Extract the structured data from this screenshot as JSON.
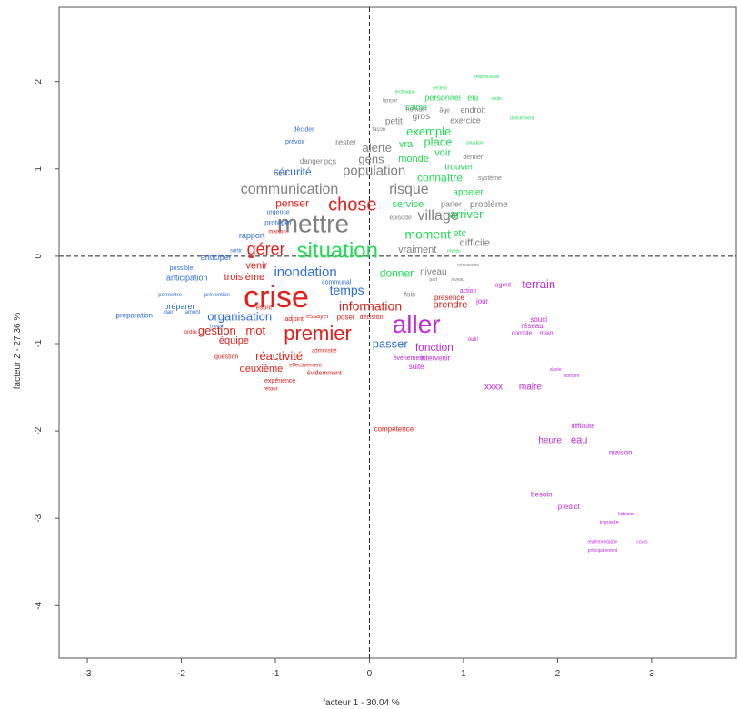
{
  "chart_data": {
    "type": "scatter",
    "subtype": "word-cloud-factor-map",
    "title": "",
    "xlabel": "facteur 1 - 30.04 %",
    "ylabel": "facteur 2 - 27.36 %",
    "xlim": [
      -3.3,
      3.9
    ],
    "ylim": [
      -4.6,
      2.85
    ],
    "xticks": [
      -3,
      -2,
      -1,
      0,
      1,
      2,
      3
    ],
    "yticks": [
      -4,
      -3,
      -2,
      -1,
      0,
      1,
      2
    ],
    "grid": false,
    "reference_lines": [
      0,
      0
    ],
    "classes": [
      {
        "name": "class-1",
        "color": "#E0201B"
      },
      {
        "name": "class-2",
        "color": "#2E6FD6"
      },
      {
        "name": "class-3",
        "color": "#808080"
      },
      {
        "name": "class-4",
        "color": "#22DD55"
      },
      {
        "name": "class-5",
        "color": "#C02BDE"
      }
    ],
    "words": [
      {
        "text": "crise",
        "x": -0.99,
        "y": -0.49,
        "size": 34,
        "cls": 0
      },
      {
        "text": "mettre",
        "x": -0.6,
        "y": 0.35,
        "size": 28,
        "cls": 2
      },
      {
        "text": "situation",
        "x": -0.34,
        "y": 0.05,
        "size": 24,
        "cls": 3
      },
      {
        "text": "aller",
        "x": 0.5,
        "y": -0.8,
        "size": 28,
        "cls": 4
      },
      {
        "text": "premier",
        "x": -0.55,
        "y": -0.9,
        "size": 22,
        "cls": 0
      },
      {
        "text": "chose",
        "x": -0.18,
        "y": 0.58,
        "size": 20,
        "cls": 0
      },
      {
        "text": "gérer",
        "x": -1.1,
        "y": 0.07,
        "size": 18,
        "cls": 0
      },
      {
        "text": "communication",
        "x": -0.85,
        "y": 0.76,
        "size": 16,
        "cls": 2
      },
      {
        "text": "risque",
        "x": 0.42,
        "y": 0.76,
        "size": 16,
        "cls": 2
      },
      {
        "text": "village",
        "x": 0.73,
        "y": 0.46,
        "size": 16,
        "cls": 2
      },
      {
        "text": "inondation",
        "x": -0.68,
        "y": -0.19,
        "size": 15,
        "cls": 1
      },
      {
        "text": "population",
        "x": 0.05,
        "y": 0.97,
        "size": 15,
        "cls": 2
      },
      {
        "text": "moment",
        "x": 0.62,
        "y": 0.24,
        "size": 14,
        "cls": 3
      },
      {
        "text": "information",
        "x": 0.01,
        "y": -0.58,
        "size": 14,
        "cls": 0
      },
      {
        "text": "temps",
        "x": -0.24,
        "y": -0.4,
        "size": 14,
        "cls": 1
      },
      {
        "text": "organisation",
        "x": -1.38,
        "y": -0.7,
        "size": 13,
        "cls": 1
      },
      {
        "text": "gestion",
        "x": -1.62,
        "y": -0.86,
        "size": 13,
        "cls": 0
      },
      {
        "text": "mot",
        "x": -1.21,
        "y": -0.86,
        "size": 13,
        "cls": 0
      },
      {
        "text": "passer",
        "x": 0.22,
        "y": -1.01,
        "size": 13,
        "cls": 1
      },
      {
        "text": "réactivité",
        "x": -0.96,
        "y": -1.15,
        "size": 13,
        "cls": 0
      },
      {
        "text": "fonction",
        "x": 0.69,
        "y": -1.05,
        "size": 12,
        "cls": 4
      },
      {
        "text": "terrain",
        "x": 1.8,
        "y": -0.33,
        "size": 13,
        "cls": 4
      },
      {
        "text": "arriver",
        "x": 1.03,
        "y": 0.47,
        "size": 13,
        "cls": 3
      },
      {
        "text": "exemple",
        "x": 0.63,
        "y": 1.42,
        "size": 13,
        "cls": 3
      },
      {
        "text": "place",
        "x": 0.73,
        "y": 1.3,
        "size": 13,
        "cls": 3
      },
      {
        "text": "alerte",
        "x": 0.08,
        "y": 1.23,
        "size": 13,
        "cls": 2
      },
      {
        "text": "gens",
        "x": 0.02,
        "y": 1.1,
        "size": 13,
        "cls": 2
      },
      {
        "text": "connaître",
        "x": 0.75,
        "y": 0.89,
        "size": 12,
        "cls": 3
      },
      {
        "text": "donner",
        "x": 0.29,
        "y": -0.2,
        "size": 12,
        "cls": 3
      },
      {
        "text": "prendre",
        "x": 0.86,
        "y": -0.56,
        "size": 11,
        "cls": 0
      },
      {
        "text": "penser",
        "x": -0.82,
        "y": 0.6,
        "size": 12,
        "cls": 0
      },
      {
        "text": "venir",
        "x": -1.2,
        "y": -0.11,
        "size": 11,
        "cls": 0
      },
      {
        "text": "troisième",
        "x": -1.33,
        "y": -0.24,
        "size": 11,
        "cls": 0
      },
      {
        "text": "équipe",
        "x": -1.44,
        "y": -0.97,
        "size": 11,
        "cls": 0
      },
      {
        "text": "deuxième",
        "x": -1.15,
        "y": -1.29,
        "size": 11,
        "cls": 0
      },
      {
        "text": "sécurité",
        "x": -0.82,
        "y": 0.96,
        "size": 12,
        "cls": 1
      },
      {
        "text": "vraiment",
        "x": 0.51,
        "y": 0.07,
        "size": 11,
        "cls": 2
      },
      {
        "text": "difficile",
        "x": 1.12,
        "y": 0.15,
        "size": 11,
        "cls": 2
      },
      {
        "text": "niveau",
        "x": 0.68,
        "y": -0.18,
        "size": 10,
        "cls": 2
      },
      {
        "text": "service",
        "x": 0.41,
        "y": 0.59,
        "size": 11,
        "cls": 3
      },
      {
        "text": "etc",
        "x": 0.96,
        "y": 0.26,
        "size": 11,
        "cls": 3
      },
      {
        "text": "voir",
        "x": 0.78,
        "y": 1.18,
        "size": 11,
        "cls": 3
      },
      {
        "text": "monde",
        "x": 0.47,
        "y": 1.11,
        "size": 11,
        "cls": 3
      },
      {
        "text": "vrai",
        "x": 0.4,
        "y": 1.28,
        "size": 11,
        "cls": 3
      },
      {
        "text": "trouver",
        "x": 0.95,
        "y": 1.02,
        "size": 10,
        "cls": 3
      },
      {
        "text": "appeler",
        "x": 1.05,
        "y": 0.73,
        "size": 10,
        "cls": 3
      },
      {
        "text": "problème",
        "x": 1.27,
        "y": 0.59,
        "size": 10,
        "cls": 2
      },
      {
        "text": "parler",
        "x": 0.87,
        "y": 0.59,
        "size": 9,
        "cls": 2
      },
      {
        "text": "gros",
        "x": 0.55,
        "y": 1.6,
        "size": 10,
        "cls": 2
      },
      {
        "text": "petit",
        "x": 0.26,
        "y": 1.54,
        "size": 10,
        "cls": 2
      },
      {
        "text": "exercice",
        "x": 1.02,
        "y": 1.55,
        "size": 9,
        "cls": 2
      },
      {
        "text": "endroit",
        "x": 1.1,
        "y": 1.67,
        "size": 9,
        "cls": 2
      },
      {
        "text": "calme",
        "x": 0.5,
        "y": 1.7,
        "size": 9,
        "cls": 3
      },
      {
        "text": "personnel",
        "x": 0.78,
        "y": 1.81,
        "size": 9,
        "cls": 3
      },
      {
        "text": "élu",
        "x": 1.1,
        "y": 1.81,
        "size": 9,
        "cls": 3
      },
      {
        "text": "xxxx",
        "x": 1.32,
        "y": -1.5,
        "size": 10,
        "cls": 4
      },
      {
        "text": "maire",
        "x": 1.71,
        "y": -1.5,
        "size": 10,
        "cls": 4
      },
      {
        "text": "heure",
        "x": 1.92,
        "y": -2.11,
        "size": 10,
        "cls": 4
      },
      {
        "text": "eau",
        "x": 2.23,
        "y": -2.11,
        "size": 11,
        "cls": 4
      },
      {
        "text": "compétence",
        "x": 0.26,
        "y": -1.98,
        "size": 8,
        "cls": 0
      },
      {
        "text": "anticiper",
        "x": -1.63,
        "y": -0.02,
        "size": 9,
        "cls": 1
      },
      {
        "text": "anticipation",
        "x": -1.94,
        "y": -0.25,
        "size": 9,
        "cls": 1
      },
      {
        "text": "préparer",
        "x": -2.02,
        "y": -0.58,
        "size": 9,
        "cls": 1
      },
      {
        "text": "préparation",
        "x": -2.5,
        "y": -0.68,
        "size": 8,
        "cls": 1
      },
      {
        "text": "rapport",
        "x": -1.25,
        "y": 0.23,
        "size": 9,
        "cls": 1
      },
      {
        "text": "protéger",
        "x": -0.97,
        "y": 0.38,
        "size": 8,
        "cls": 1
      },
      {
        "text": "urgence",
        "x": -0.97,
        "y": 0.5,
        "size": 7,
        "cls": 1
      },
      {
        "text": "prévoir",
        "x": -0.79,
        "y": 1.31,
        "size": 7,
        "cls": 1
      },
      {
        "text": "décider",
        "x": -0.7,
        "y": 1.45,
        "size": 7,
        "cls": 1
      },
      {
        "text": "rester",
        "x": -0.25,
        "y": 1.3,
        "size": 9,
        "cls": 2
      },
      {
        "text": "outil",
        "x": -0.94,
        "y": 0.94,
        "size": 8,
        "cls": 2
      },
      {
        "text": "pcs",
        "x": -0.42,
        "y": 1.08,
        "size": 9,
        "cls": 2
      },
      {
        "text": "danger",
        "x": -0.62,
        "y": 1.08,
        "size": 8,
        "cls": 2
      },
      {
        "text": "fois",
        "x": 0.43,
        "y": -0.44,
        "size": 8,
        "cls": 2
      },
      {
        "text": "épisode",
        "x": 0.33,
        "y": 0.44,
        "size": 7,
        "cls": 2
      },
      {
        "text": "système",
        "x": 1.28,
        "y": 0.89,
        "size": 7,
        "cls": 2
      },
      {
        "text": "dernier",
        "x": 1.1,
        "y": 1.13,
        "size": 7,
        "cls": 2
      },
      {
        "text": "humain",
        "x": 0.5,
        "y": 1.68,
        "size": 7,
        "cls": 2
      },
      {
        "text": "âge",
        "x": 0.8,
        "y": 1.67,
        "size": 7,
        "cls": 2
      },
      {
        "text": "souci",
        "x": 1.8,
        "y": -0.73,
        "size": 8,
        "cls": 4
      },
      {
        "text": "réseau",
        "x": 1.73,
        "y": -0.8,
        "size": 8,
        "cls": 4
      },
      {
        "text": "jour",
        "x": 1.2,
        "y": -0.52,
        "size": 8,
        "cls": 4
      },
      {
        "text": "action",
        "x": 1.05,
        "y": -0.4,
        "size": 7,
        "cls": 4
      },
      {
        "text": "agent",
        "x": 1.42,
        "y": -0.33,
        "size": 7,
        "cls": 4
      },
      {
        "text": "compte",
        "x": 1.62,
        "y": -0.88,
        "size": 7,
        "cls": 4
      },
      {
        "text": "main",
        "x": 1.88,
        "y": -0.88,
        "size": 7,
        "cls": 4
      },
      {
        "text": "besoin",
        "x": 1.83,
        "y": -2.73,
        "size": 8,
        "cls": 4
      },
      {
        "text": "predict",
        "x": 2.12,
        "y": -2.87,
        "size": 8,
        "cls": 4
      },
      {
        "text": "maison",
        "x": 2.67,
        "y": -2.25,
        "size": 8,
        "cls": 4
      },
      {
        "text": "difficulté",
        "x": 2.27,
        "y": -1.95,
        "size": 7,
        "cls": 4
      },
      {
        "text": "intervenir",
        "x": 0.7,
        "y": -1.17,
        "size": 8,
        "cls": 4
      },
      {
        "text": "événement",
        "x": 0.42,
        "y": -1.17,
        "size": 7,
        "cls": 4
      },
      {
        "text": "suite",
        "x": 0.5,
        "y": -1.27,
        "size": 8,
        "cls": 4
      },
      {
        "text": "présence",
        "x": 0.85,
        "y": -0.48,
        "size": 8,
        "cls": 0
      },
      {
        "text": "poser",
        "x": -0.25,
        "y": -0.7,
        "size": 8,
        "cls": 0
      },
      {
        "text": "décision",
        "x": 0.02,
        "y": -0.7,
        "size": 7,
        "cls": 0
      },
      {
        "text": "essayer",
        "x": -0.55,
        "y": -0.69,
        "size": 7,
        "cls": 0
      },
      {
        "text": "adjoint",
        "x": -0.8,
        "y": -0.72,
        "size": 7,
        "cls": 0
      },
      {
        "text": "esprit",
        "x": -1.12,
        "y": -0.59,
        "size": 7,
        "cls": 0
      },
      {
        "text": "question",
        "x": -1.52,
        "y": -1.15,
        "size": 7,
        "cls": 0
      },
      {
        "text": "évidemment",
        "x": -0.48,
        "y": -1.34,
        "size": 7,
        "cls": 0
      },
      {
        "text": "effectivement",
        "x": -0.68,
        "y": -1.25,
        "size": 6,
        "cls": 0
      },
      {
        "text": "expérience",
        "x": -0.95,
        "y": -1.43,
        "size": 7,
        "cls": 0
      },
      {
        "text": "retour",
        "x": -1.05,
        "y": -1.52,
        "size": 6,
        "cls": 0
      },
      {
        "text": "administré",
        "x": -0.48,
        "y": -1.08,
        "size": 6,
        "cls": 0
      },
      {
        "text": "prévention",
        "x": -1.62,
        "y": -0.44,
        "size": 6,
        "cls": 1
      },
      {
        "text": "permettre",
        "x": -2.12,
        "y": -0.44,
        "size": 6,
        "cls": 1
      },
      {
        "text": "amont",
        "x": -1.88,
        "y": -0.64,
        "size": 6,
        "cls": 1
      },
      {
        "text": "clair",
        "x": -2.14,
        "y": -0.64,
        "size": 6,
        "cls": 1
      },
      {
        "text": "possible",
        "x": -2.0,
        "y": -0.14,
        "size": 7,
        "cls": 1
      },
      {
        "text": "communal",
        "x": -0.35,
        "y": -0.3,
        "size": 7,
        "cls": 1
      },
      {
        "text": "sortir",
        "x": -1.42,
        "y": 0.06,
        "size": 6,
        "cls": 1
      },
      {
        "text": "maison",
        "x": -0.98,
        "y": 0.28,
        "size": 6,
        "cls": 0
      },
      {
        "text": "ordre",
        "x": -1.9,
        "y": -0.87,
        "size": 6,
        "cls": 0
      },
      {
        "text": "travail",
        "x": -1.62,
        "y": -0.8,
        "size": 6,
        "cls": 1
      },
      {
        "text": "outil",
        "x": 1.1,
        "y": -0.95,
        "size": 6,
        "cls": 4
      },
      {
        "text": "durée",
        "x": 1.98,
        "y": -1.3,
        "size": 5,
        "cls": 4
      },
      {
        "text": "nombre",
        "x": 2.15,
        "y": -1.37,
        "size": 5,
        "cls": 4
      },
      {
        "text": "impacte",
        "x": 2.55,
        "y": -3.05,
        "size": 6,
        "cls": 4
      },
      {
        "text": "réglementation",
        "x": 2.48,
        "y": -3.27,
        "size": 5,
        "cls": 4
      },
      {
        "text": "principalement",
        "x": 2.48,
        "y": -3.37,
        "size": 5,
        "cls": 4
      },
      {
        "text": "cours",
        "x": 2.9,
        "y": -3.27,
        "size": 5,
        "cls": 4
      },
      {
        "text": "habitant",
        "x": 2.73,
        "y": -2.95,
        "size": 5,
        "cls": 4
      },
      {
        "text": "secteur",
        "x": 0.75,
        "y": 1.92,
        "size": 5,
        "cls": 3
      },
      {
        "text": "responsable",
        "x": 1.25,
        "y": 2.05,
        "size": 5,
        "cls": 3
      },
      {
        "text": "route",
        "x": 1.35,
        "y": 1.8,
        "size": 5,
        "cls": 3
      },
      {
        "text": "directement",
        "x": 1.62,
        "y": 1.58,
        "size": 5,
        "cls": 3
      },
      {
        "text": "situation",
        "x": 1.12,
        "y": 1.3,
        "size": 5,
        "cls": 3
      },
      {
        "text": "lancer",
        "x": 0.22,
        "y": 1.78,
        "size": 6,
        "cls": 2
      },
      {
        "text": "façon",
        "x": 0.1,
        "y": 1.45,
        "size": 6,
        "cls": 2
      },
      {
        "text": "technique",
        "x": 0.38,
        "y": 1.88,
        "size": 5,
        "cls": 3
      },
      {
        "text": "niveau",
        "x": 0.9,
        "y": 0.06,
        "size": 5,
        "cls": 3
      },
      {
        "text": "nécessaire",
        "x": 1.05,
        "y": -0.1,
        "size": 5,
        "cls": 2
      },
      {
        "text": "part",
        "x": 0.68,
        "y": -0.27,
        "size": 5,
        "cls": 2
      },
      {
        "text": "niveau",
        "x": 0.94,
        "y": -0.27,
        "size": 5,
        "cls": 2
      }
    ]
  }
}
